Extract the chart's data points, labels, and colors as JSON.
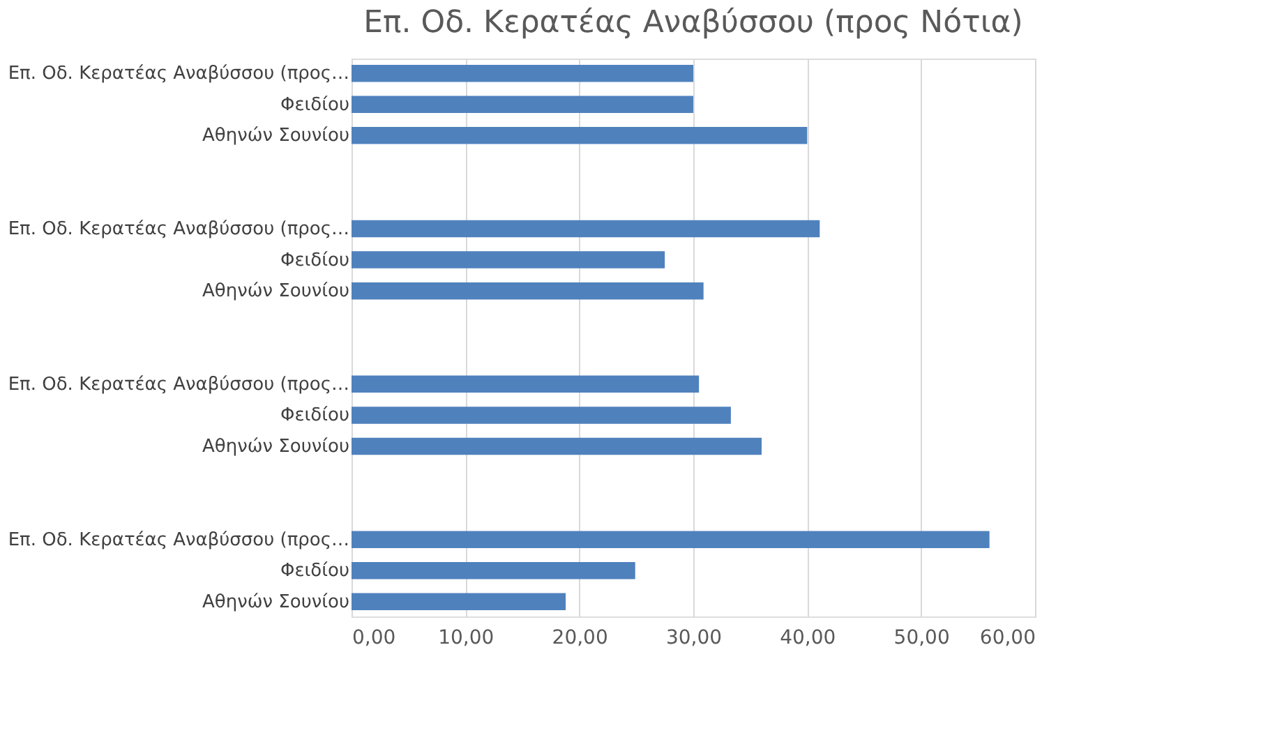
{
  "chart_data": {
    "type": "bar",
    "orientation": "horizontal",
    "title": "Επ. Οδ. Κερατέας Αναβύσσου (προς Νότια)",
    "categories": [
      "Επ. Οδ. Κερατέας Αναβύσσου (προς…",
      "Φειδίου",
      "Αθηνών Σουνίου",
      null,
      null,
      "Επ. Οδ. Κερατέας Αναβύσσου (προς…",
      "Φειδίου",
      "Αθηνών Σουνίου",
      null,
      null,
      "Επ. Οδ. Κερατέας Αναβύσσου (προς…",
      "Φειδίου",
      "Αθηνών Σουνίου",
      null,
      null,
      "Επ. Οδ. Κερατέας Αναβύσσου (προς…",
      "Φειδίου",
      "Αθηνών Σουνίου"
    ],
    "values": [
      30,
      30,
      40,
      null,
      null,
      41.1,
      27.5,
      30.9,
      null,
      null,
      30.5,
      33.3,
      36.0,
      null,
      null,
      56.0,
      24.9,
      18.8
    ],
    "color": "#4f81bd",
    "xlim": [
      0,
      60
    ],
    "xticks": [
      {
        "value": 0,
        "label": "0,00"
      },
      {
        "value": 10,
        "label": "10,00"
      },
      {
        "value": 20,
        "label": "20,00"
      },
      {
        "value": 30,
        "label": "30,00"
      },
      {
        "value": 40,
        "label": "40,00"
      },
      {
        "value": 50,
        "label": "50,00"
      },
      {
        "value": 60,
        "label": "60,00"
      }
    ],
    "grid": "x"
  }
}
